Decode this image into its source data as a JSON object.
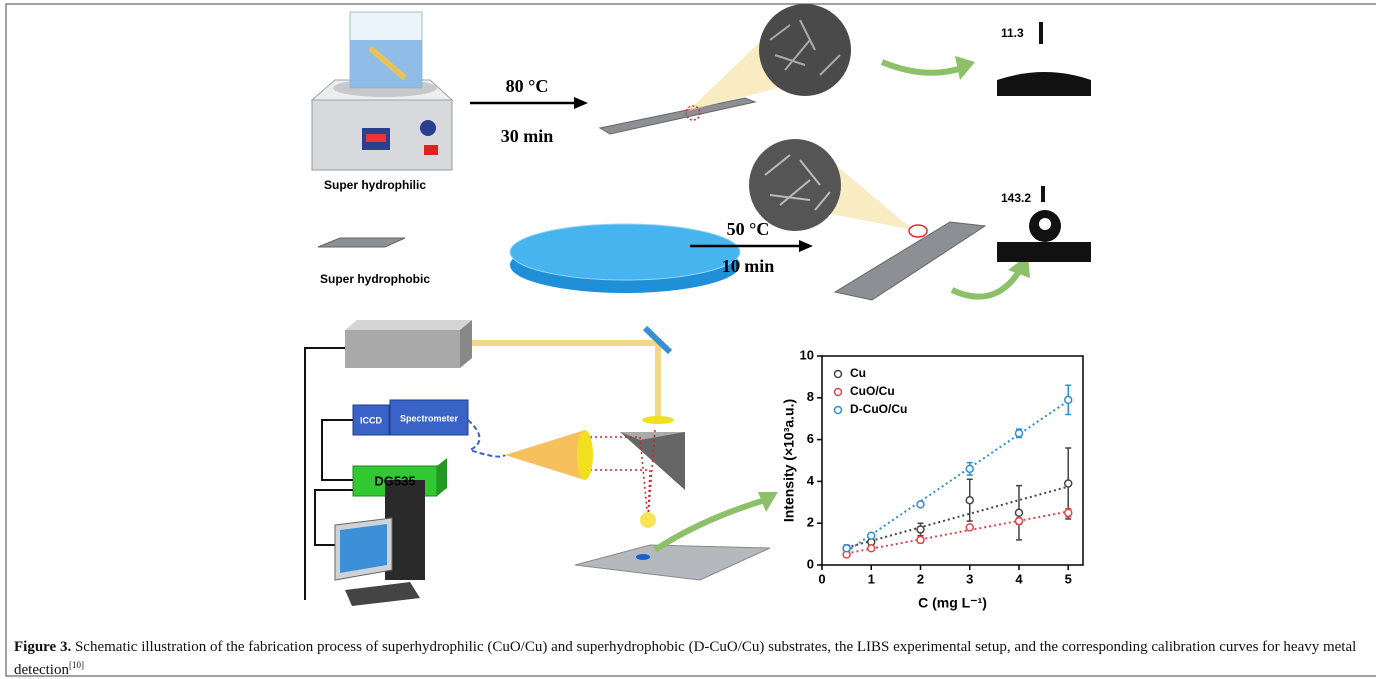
{
  "schematic": {
    "step1_temp": "80 °C",
    "step1_time": "30 min",
    "step1_angle": "11.3",
    "step1_label": "Super hydrophilic",
    "step2_temp": "50 °C",
    "step2_time": "10 min",
    "step2_angle": "143.2",
    "step2_label": "Super hydrophobic",
    "iccd": "ICCD",
    "spectrometer": "Spectrometer",
    "delay": "DG535"
  },
  "chart_data": {
    "type": "scatter",
    "x_label": "C (mg L⁻¹)",
    "y_label": "Intensity (×10³a.u.)",
    "x": [
      0.5,
      1,
      2,
      3,
      4,
      5
    ],
    "series": [
      {
        "name": "Cu",
        "color": "#444444",
        "values": [
          0.8,
          1.1,
          1.7,
          3.1,
          2.5,
          3.9
        ],
        "errors": [
          0.15,
          0.2,
          0.3,
          1.0,
          1.3,
          1.7
        ]
      },
      {
        "name": "CuO/Cu",
        "color": "#e0454a",
        "values": [
          0.5,
          0.8,
          1.2,
          1.8,
          2.1,
          2.5
        ],
        "errors": [
          0.1,
          0.1,
          0.15,
          0.1,
          0.15,
          0.2
        ]
      },
      {
        "name": "D-CuO/Cu",
        "color": "#2b8fd6",
        "values": [
          0.8,
          1.4,
          2.9,
          4.6,
          6.3,
          7.9
        ],
        "errors": [
          0.1,
          0.1,
          0.1,
          0.3,
          0.2,
          0.7
        ]
      }
    ],
    "xlim": [
      0,
      5.3
    ],
    "ylim": [
      0,
      10
    ],
    "xticks": [
      0,
      1,
      2,
      3,
      4,
      5
    ],
    "yticks": [
      0,
      2,
      4,
      6,
      8,
      10
    ],
    "fit_lines": true
  },
  "caption": {
    "label": "Figure 3.",
    "text": "Schematic illustration of the fabrication process of superhydrophilic (CuO/Cu) and superhydrophobic (D-CuO/Cu) substrates, the LIBS experimental setup, and the corresponding calibration curves for heavy metal detection",
    "citation": "[10]"
  }
}
